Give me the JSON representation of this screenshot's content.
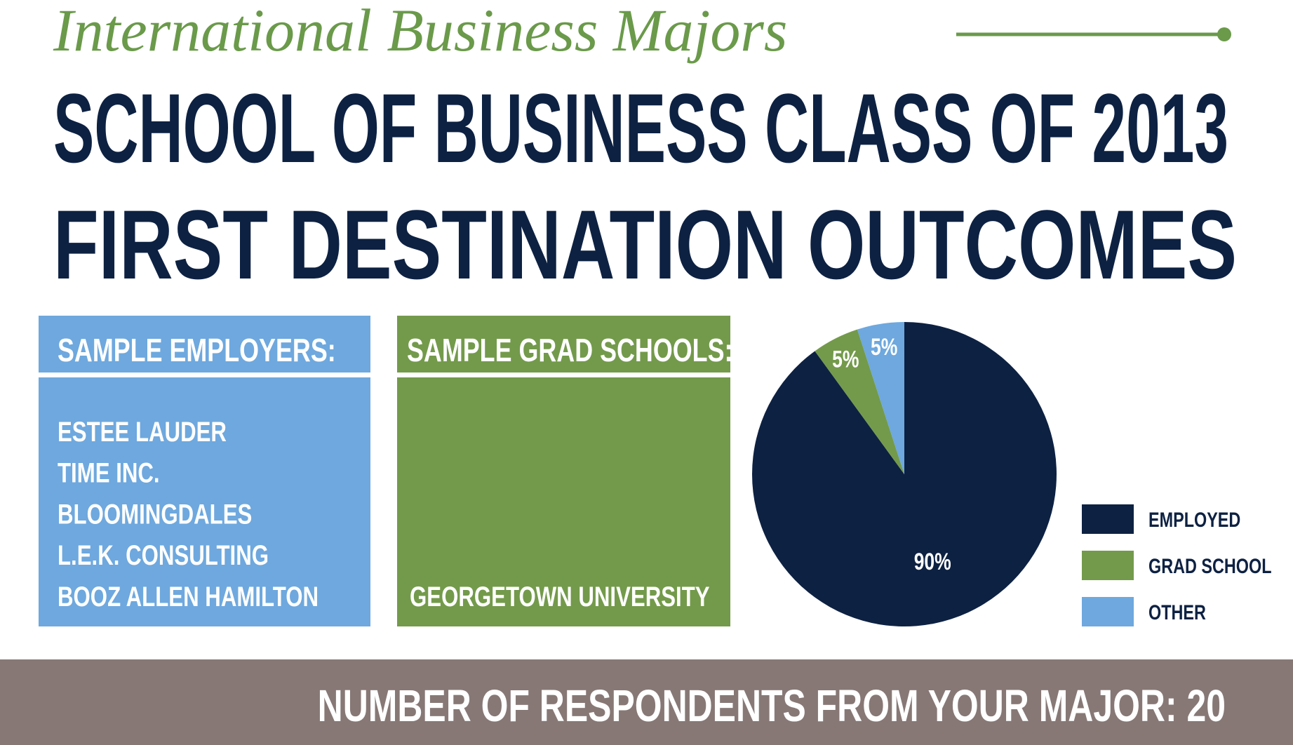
{
  "header": {
    "script_title": "International Business Majors",
    "line1": "SCHOOL OF BUSINESS CLASS OF 2013",
    "line2": "FIRST DESTINATION OUTCOMES"
  },
  "employers": {
    "title": "SAMPLE EMPLOYERS:",
    "items": [
      "ESTEE LAUDER",
      "TIME INC.",
      "BLOOMINGDALES",
      "L.E.K. CONSULTING",
      "BOOZ ALLEN HAMILTON"
    ]
  },
  "grad_schools": {
    "title": "SAMPLE GRAD SCHOOLS:",
    "items": [
      "GEORGETOWN UNIVERSITY"
    ]
  },
  "chart_data": {
    "type": "pie",
    "categories": [
      "EMPLOYED",
      "GRAD SCHOOL",
      "OTHER"
    ],
    "values": [
      90,
      5,
      5
    ],
    "value_labels": [
      "90%",
      "5%",
      "5%"
    ],
    "colors": [
      "#0d2142",
      "#739a4b",
      "#6ea8de"
    ]
  },
  "footer": {
    "text": "NUMBER OF RESPONDENTS FROM YOUR MAJOR: 20"
  }
}
